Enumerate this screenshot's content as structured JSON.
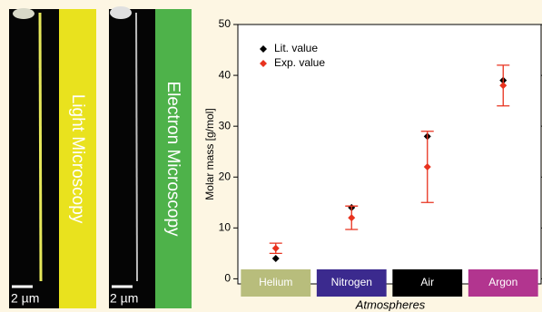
{
  "panels": [
    {
      "label": "Light Microscopy",
      "scale_bar": "2 µm"
    },
    {
      "label": "Electron Microscopy",
      "scale_bar": "2 µm"
    }
  ],
  "chart_data": {
    "type": "scatter",
    "x_label": "Atmospheres",
    "y_label": "Molar mass [g/mol]",
    "categories": [
      "Helium",
      "Nitrogen",
      "Air",
      "Argon"
    ],
    "category_colors": [
      "#b8bd7c",
      "#3b2a8e",
      "#000000",
      "#b2358f"
    ],
    "series": [
      {
        "name": "Lit. value",
        "color": "#000000",
        "values": [
          4,
          14,
          28,
          39
        ]
      },
      {
        "name": "Exp. value",
        "color": "#e8321e",
        "values": [
          6,
          12,
          22,
          38
        ],
        "errors": [
          1,
          2.3,
          7,
          4
        ]
      }
    ],
    "ylim": [
      -1,
      50
    ],
    "yticks": [
      0,
      10,
      20,
      30,
      40,
      50
    ]
  }
}
